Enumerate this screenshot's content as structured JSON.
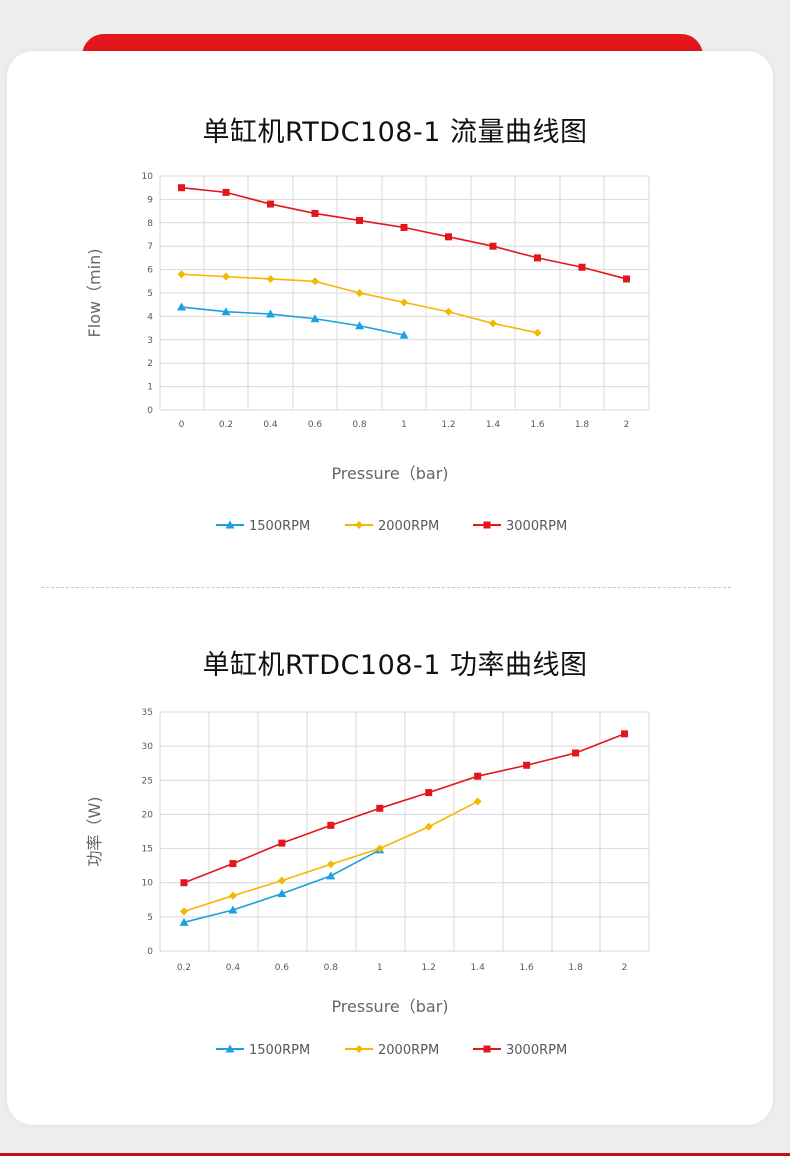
{
  "colors": {
    "series_1500": "#1ba1e2",
    "series_2000": "#f5b800",
    "series_3000": "#e3161b",
    "accent": "#e3161b"
  },
  "chart_data": [
    {
      "type": "line",
      "title": "单缸机RTDC108-1 流量曲线图",
      "xlabel": "Pressure（bar)",
      "ylabel": "Flow（min)",
      "x_ticks": [
        "0",
        "0.2",
        "0.4",
        "0.6",
        "0.8",
        "1",
        "1.2",
        "1.4",
        "1.6",
        "1.8",
        "2"
      ],
      "y_ticks": [
        "0",
        "1",
        "2",
        "3",
        "4",
        "5",
        "6",
        "7",
        "8",
        "9",
        "10"
      ],
      "xlim": [
        0,
        2
      ],
      "ylim": [
        0,
        10
      ],
      "grid": true,
      "legend_position": "bottom",
      "series": [
        {
          "name": "1500RPM",
          "marker": "triangle",
          "color": "#1ba1e2",
          "x": [
            0,
            0.2,
            0.4,
            0.6,
            0.8,
            1.0
          ],
          "values": [
            4.4,
            4.2,
            4.1,
            3.9,
            3.6,
            3.2
          ]
        },
        {
          "name": "2000RPM",
          "marker": "diamond",
          "color": "#f5b800",
          "x": [
            0,
            0.2,
            0.4,
            0.6,
            0.8,
            1.0,
            1.2,
            1.4,
            1.6
          ],
          "values": [
            5.8,
            5.7,
            5.6,
            5.5,
            5.0,
            4.6,
            4.2,
            3.7,
            3.3
          ]
        },
        {
          "name": "3000RPM",
          "marker": "square",
          "color": "#e3161b",
          "x": [
            0,
            0.2,
            0.4,
            0.6,
            0.8,
            1.0,
            1.2,
            1.4,
            1.6,
            1.8,
            2.0
          ],
          "values": [
            9.5,
            9.3,
            8.8,
            8.4,
            8.1,
            7.8,
            7.4,
            7.0,
            6.5,
            6.1,
            5.6
          ]
        }
      ]
    },
    {
      "type": "line",
      "title": "单缸机RTDC108-1 功率曲线图",
      "xlabel": "Pressure（bar)",
      "ylabel": "功率（W)",
      "x_ticks": [
        "0.2",
        "0.4",
        "0.6",
        "0.8",
        "1",
        "1.2",
        "1.4",
        "1.6",
        "1.8",
        "2"
      ],
      "y_ticks": [
        "0",
        "5",
        "10",
        "15",
        "20",
        "25",
        "30",
        "35"
      ],
      "xlim": [
        0.2,
        2
      ],
      "ylim": [
        0,
        35
      ],
      "grid": true,
      "legend_position": "bottom",
      "series": [
        {
          "name": "1500RPM",
          "marker": "triangle",
          "color": "#1ba1e2",
          "x": [
            0.2,
            0.4,
            0.6,
            0.8,
            1.0
          ],
          "values": [
            4.2,
            6.0,
            8.4,
            11.0,
            14.8
          ]
        },
        {
          "name": "2000RPM",
          "marker": "diamond",
          "color": "#f5b800",
          "x": [
            0.2,
            0.4,
            0.6,
            0.8,
            1.0,
            1.2,
            1.4
          ],
          "values": [
            5.8,
            8.1,
            10.3,
            12.7,
            15.0,
            18.2,
            21.9
          ]
        },
        {
          "name": "3000RPM",
          "marker": "square",
          "color": "#e3161b",
          "x": [
            0.2,
            0.4,
            0.6,
            0.8,
            1.0,
            1.2,
            1.4,
            1.6,
            1.8,
            2.0
          ],
          "values": [
            10.0,
            12.8,
            15.8,
            18.4,
            20.9,
            23.2,
            25.6,
            27.2,
            29.0,
            31.8
          ]
        }
      ]
    }
  ]
}
